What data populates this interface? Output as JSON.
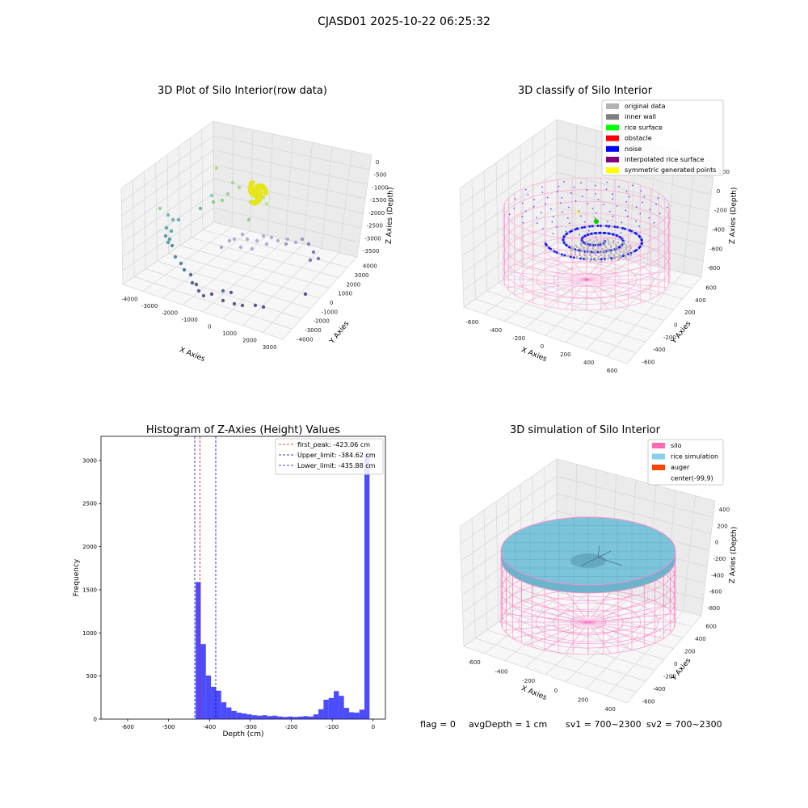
{
  "suptitle": "CJASD01 2025-10-22 06:25:32",
  "panels": {
    "raw": {
      "title": "3D Plot of Silo Interior(row data)",
      "xlabel": "X Axies",
      "ylabel": "Y Axies",
      "zlabel": "Z Axies (Depth)",
      "xticks": [
        "-4000",
        "-3000",
        "-2000",
        "-1000",
        "0",
        "1000",
        "2000",
        "3000"
      ],
      "yticks": [
        "-4000",
        "-3000",
        "-2000",
        "-1000",
        "0",
        "1000",
        "2000",
        "3000",
        "4000"
      ],
      "zticks": [
        "0",
        "-500",
        "-1000",
        "-1500",
        "-2000",
        "-2500",
        "-3000",
        "-3500"
      ]
    },
    "classify": {
      "title": "3D classify of Silo Interior",
      "xlabel": "X Axies",
      "ylabel": "Y Axies",
      "zlabel": "Z Axies (Depth)",
      "xticks": [
        "-600",
        "-400",
        "-200",
        "0",
        "200",
        "400",
        "600"
      ],
      "yticks": [
        "-600",
        "-400",
        "-200",
        "0",
        "200",
        "400",
        "600"
      ],
      "zticks": [
        "200",
        "0",
        "-200",
        "-400",
        "-600",
        "-800"
      ],
      "legend": [
        {
          "label": "original data",
          "color": "#b3b3b3"
        },
        {
          "label": "inner wall",
          "color": "#808080"
        },
        {
          "label": "rice surface",
          "color": "#00ff00"
        },
        {
          "label": "obstacle",
          "color": "#ff0000"
        },
        {
          "label": "noise",
          "color": "#0000ff"
        },
        {
          "label": "interpolated rice surface",
          "color": "#800080"
        },
        {
          "label": "symmetric generated points",
          "color": "#ffff00"
        }
      ]
    },
    "simulation": {
      "title": "3D simulation of Silo Interior",
      "xlabel": "X Axies",
      "ylabel": "Y Axies",
      "zlabel": "Z Axies (Depth)",
      "xticks": [
        "-600",
        "-400",
        "-200",
        "0",
        "200",
        "400"
      ],
      "yticks": [
        "-600",
        "-400",
        "-200",
        "0",
        "200",
        "400",
        "600"
      ],
      "zticks": [
        "400",
        "200",
        "0",
        "-200",
        "-400",
        "-600",
        "-800"
      ],
      "legend": [
        {
          "label": "silo",
          "color": "#ff69b4"
        },
        {
          "label": "rice simulation",
          "color": "#87ceeb"
        },
        {
          "label": "auger",
          "color": "#ff4500"
        },
        {
          "label": "center(-99,9)",
          "color": ""
        }
      ],
      "status": {
        "flag": "flag = 0",
        "avg_depth": "avgDepth = 1 cm",
        "sv1": "sv1 = 700~2300",
        "sv2": "sv2 = 700~2300"
      }
    }
  },
  "chart_data": {
    "type": "bar",
    "title": "Histogram of Z-Axies (Height) Values",
    "xlabel": "Depth (cm)",
    "ylabel": "Frequency",
    "xlim": [
      -665,
      30
    ],
    "ylim": [
      0,
      3280
    ],
    "xticks": [
      "-600",
      "-500",
      "-400",
      "-300",
      "-200",
      "-100",
      "0"
    ],
    "yticks": [
      "0",
      "500",
      "1000",
      "1500",
      "2000",
      "2500",
      "3000"
    ],
    "bar_color": "#0000ff",
    "bin_width": 12.5,
    "bins": [
      {
        "x": -440,
        "value": 5
      },
      {
        "x": -427.5,
        "value": 1590
      },
      {
        "x": -415,
        "value": 870
      },
      {
        "x": -402.5,
        "value": 505
      },
      {
        "x": -390,
        "value": 375
      },
      {
        "x": -377.5,
        "value": 330
      },
      {
        "x": -365,
        "value": 195
      },
      {
        "x": -352.5,
        "value": 135
      },
      {
        "x": -340,
        "value": 95
      },
      {
        "x": -327.5,
        "value": 75
      },
      {
        "x": -315,
        "value": 65
      },
      {
        "x": -302.5,
        "value": 55
      },
      {
        "x": -290,
        "value": 45
      },
      {
        "x": -277.5,
        "value": 40
      },
      {
        "x": -265,
        "value": 45
      },
      {
        "x": -252.5,
        "value": 35
      },
      {
        "x": -240,
        "value": 40
      },
      {
        "x": -227.5,
        "value": 30
      },
      {
        "x": -215,
        "value": 25
      },
      {
        "x": -202.5,
        "value": 30
      },
      {
        "x": -190,
        "value": 25
      },
      {
        "x": -177.5,
        "value": 30
      },
      {
        "x": -165,
        "value": 35
      },
      {
        "x": -152.5,
        "value": 30
      },
      {
        "x": -140,
        "value": 55
      },
      {
        "x": -127.5,
        "value": 115
      },
      {
        "x": -115,
        "value": 225
      },
      {
        "x": -102.5,
        "value": 245
      },
      {
        "x": -90,
        "value": 325
      },
      {
        "x": -77.5,
        "value": 270
      },
      {
        "x": -65,
        "value": 130
      },
      {
        "x": -52.5,
        "value": 80
      },
      {
        "x": -40,
        "value": 75
      },
      {
        "x": -27.5,
        "value": 110
      },
      {
        "x": -15,
        "value": 3080
      }
    ],
    "lines": [
      {
        "label": "first_peak: -423.06 cm",
        "x": -423.06,
        "color": "#ff0000"
      },
      {
        "label": "Upper_limit: -384.62 cm",
        "x": -384.62,
        "color": "#0000cc"
      },
      {
        "label": "Lower_limit: -435.88 cm",
        "x": -435.88,
        "color": "#0000cc"
      }
    ]
  }
}
